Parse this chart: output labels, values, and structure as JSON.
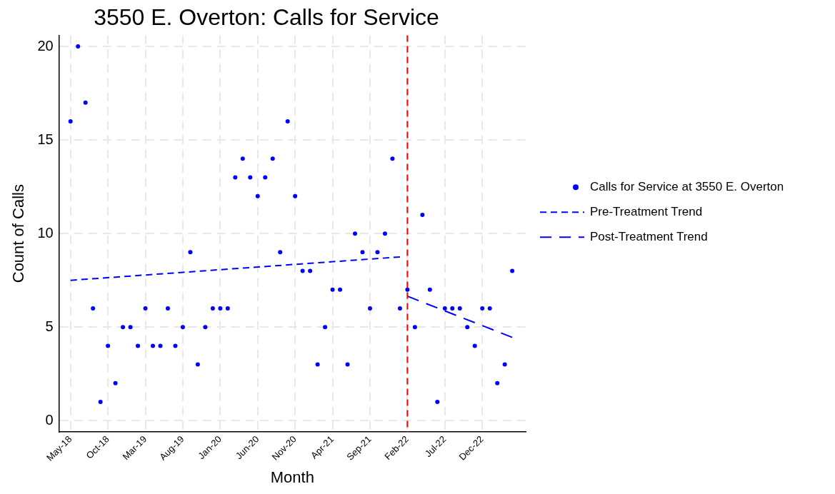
{
  "chart_data": {
    "type": "scatter",
    "title": "3550 E. Overton: Calls for Service",
    "xlabel": "Month",
    "ylabel": "Count of Calls",
    "x": [
      "2018-05",
      "2018-06",
      "2018-07",
      "2018-08",
      "2018-09",
      "2018-10",
      "2018-11",
      "2018-12",
      "2019-01",
      "2019-02",
      "2019-03",
      "2019-04",
      "2019-05",
      "2019-06",
      "2019-07",
      "2019-08",
      "2019-09",
      "2019-10",
      "2019-11",
      "2019-12",
      "2020-01",
      "2020-02",
      "2020-03",
      "2020-04",
      "2020-05",
      "2020-06",
      "2020-07",
      "2020-08",
      "2020-09",
      "2020-10",
      "2020-11",
      "2020-12",
      "2021-01",
      "2021-02",
      "2021-03",
      "2021-04",
      "2021-05",
      "2021-06",
      "2021-07",
      "2021-08",
      "2021-09",
      "2021-10",
      "2021-11",
      "2021-12",
      "2022-01",
      "2022-02",
      "2022-03",
      "2022-04",
      "2022-05",
      "2022-06",
      "2022-07",
      "2022-08",
      "2022-09",
      "2022-10",
      "2022-11",
      "2022-12",
      "2023-01",
      "2023-02",
      "2023-03",
      "2023-04"
    ],
    "series": [
      {
        "name": "Calls for Service at 3550 E. Overton",
        "type": "scatter",
        "marker": "circle",
        "color": "#0000ff",
        "values": [
          16,
          20,
          17,
          6,
          1,
          4,
          2,
          5,
          5,
          4,
          6,
          4,
          4,
          6,
          4,
          5,
          9,
          3,
          5,
          6,
          6,
          6,
          13,
          14,
          13,
          12,
          13,
          14,
          9,
          16,
          12,
          8,
          8,
          3,
          5,
          7,
          7,
          3,
          10,
          9,
          6,
          9,
          10,
          14,
          6,
          7,
          5,
          11,
          7,
          1,
          6,
          6,
          6,
          5,
          4,
          6,
          6,
          2,
          3,
          8
        ]
      },
      {
        "name": "Pre-Treatment Trend",
        "type": "line",
        "color": "#0000ff",
        "line_style": "dashed",
        "x": [
          "2018-05",
          "2022-01"
        ],
        "values": [
          7.5,
          8.75
        ]
      },
      {
        "name": "Post-Treatment Trend",
        "type": "line",
        "color": "#0000ff",
        "line_style": "dashed",
        "x": [
          "2022-02",
          "2023-04"
        ],
        "values": [
          6.65,
          4.45
        ]
      }
    ],
    "xlim": [
      "2018-03-15",
      "2023-05-25"
    ],
    "xticks": [
      {
        "value": "2018-05",
        "label": "May-18"
      },
      {
        "value": "2018-10",
        "label": "Oct-18"
      },
      {
        "value": "2019-03",
        "label": "Mar-19"
      },
      {
        "value": "2019-08",
        "label": "Aug-19"
      },
      {
        "value": "2020-01",
        "label": "Jan-20"
      },
      {
        "value": "2020-06",
        "label": "Jun-20"
      },
      {
        "value": "2020-11",
        "label": "Nov-20"
      },
      {
        "value": "2021-04",
        "label": "Apr-21"
      },
      {
        "value": "2021-09",
        "label": "Sep-21"
      },
      {
        "value": "2022-02",
        "label": "Feb-22"
      },
      {
        "value": "2022-07",
        "label": "Jul-22"
      },
      {
        "value": "2022-12",
        "label": "Dec-22"
      }
    ],
    "ylim": [
      -0.6,
      20.6
    ],
    "yticks": [
      0,
      5,
      10,
      15,
      20
    ],
    "ref_lines": [
      {
        "axis": "x",
        "value": "2022-02",
        "color": "#ff0000",
        "line_style": "dashed"
      }
    ],
    "grid": true,
    "legend": "right"
  }
}
